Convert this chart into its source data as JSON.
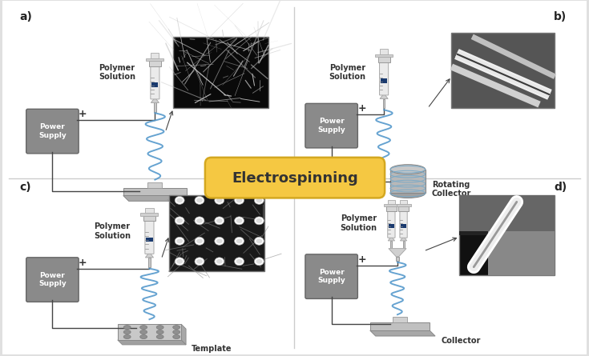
{
  "outer_bg": "#e8e8e8",
  "title_text": "Electrospinning",
  "title_bg": "#f5c842",
  "title_border": "#d4a820",
  "wire_color": "#5599cc",
  "panels": [
    "a)",
    "b)",
    "c)",
    "d)"
  ]
}
